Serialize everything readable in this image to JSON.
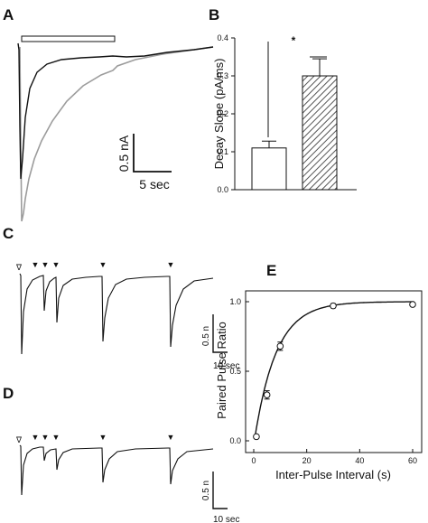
{
  "panels": {
    "a": {
      "letter": "A",
      "scale": {
        "y_label": "0.5 nA",
        "x_label": "5 sec"
      }
    },
    "b": {
      "letter": "B",
      "significance": "*"
    },
    "c": {
      "letter": "C",
      "scale": {
        "y_label": "0.5 n",
        "x_label": "10 sec"
      },
      "open_marker": "∇",
      "filled_marker": "▼"
    },
    "d": {
      "letter": "D",
      "scale": {
        "y_label": "0.5 n",
        "x_label": "10 sec"
      },
      "open_marker": "∇",
      "filled_marker": "▼"
    },
    "e": {
      "letter": "E"
    }
  },
  "chart_data": [
    {
      "panel": "B",
      "type": "bar",
      "ylabel": "Decay Slope (pA/ms)",
      "ylim": [
        0.0,
        0.4
      ],
      "yticks": [
        "0.0",
        "0.1",
        "0.2",
        "0.3",
        "0.4"
      ],
      "categories": [
        "",
        ""
      ],
      "values": [
        0.11,
        0.3
      ],
      "errors_upper": [
        0.018,
        0.045
      ],
      "fills": [
        "open",
        "hatched"
      ],
      "colors": {
        "bar_edge": "#111111",
        "hatch": "#555555"
      }
    },
    {
      "panel": "E",
      "type": "scatter",
      "xlabel": "Inter-Pulse Interval (s)",
      "ylabel": "Paired Pulse Ratio",
      "xlim": [
        0,
        60
      ],
      "ylim": [
        0.0,
        1.05
      ],
      "xticks": [
        "0",
        "20",
        "40",
        "60"
      ],
      "yticks": [
        "0.0",
        "0.5",
        "1.0"
      ],
      "x": [
        1,
        5,
        10,
        30,
        60
      ],
      "y": [
        0.03,
        0.33,
        0.68,
        0.97,
        0.98
      ],
      "y_err": [
        0.01,
        0.03,
        0.03,
        0.015,
        0.01
      ],
      "fit": "exponential",
      "grid": false
    },
    {
      "panel": "C",
      "type": "line",
      "x_units": "sec",
      "stimulus_times": [
        0,
        2.3,
        4.5,
        7.5,
        17.5,
        32.5
      ],
      "peak_amplitudes_rel": [
        1.0,
        0.3,
        0.42,
        0.55,
        0.8,
        0.92
      ]
    },
    {
      "panel": "D",
      "type": "line",
      "x_units": "sec",
      "stimulus_times": [
        0,
        2.3,
        4.5,
        7.5,
        17.5,
        32.5
      ],
      "peak_amplitudes_rel": [
        0.28,
        0.06,
        0.12,
        0.2,
        0.35,
        0.45
      ]
    }
  ]
}
